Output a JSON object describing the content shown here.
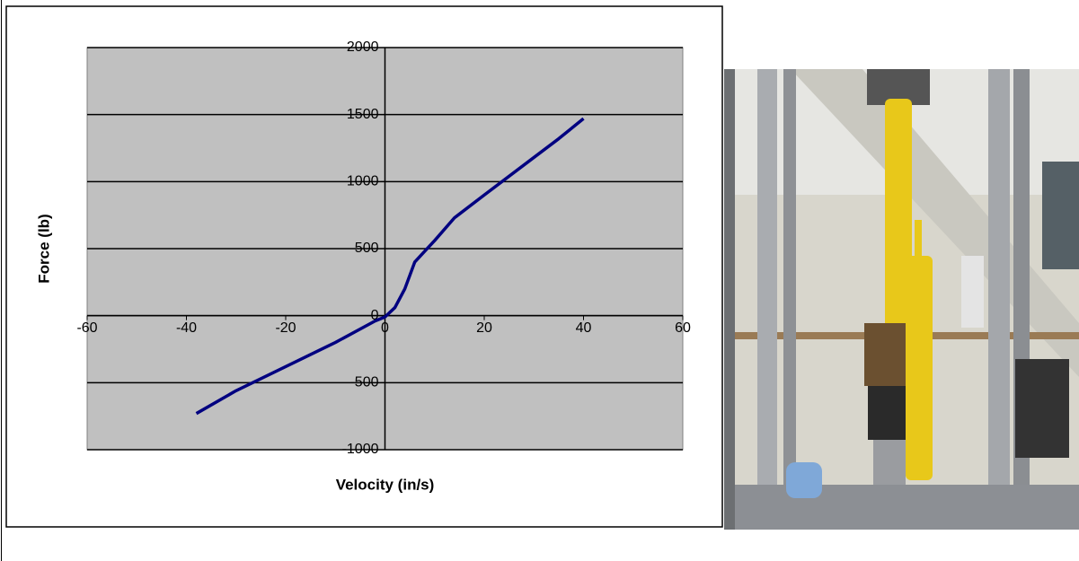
{
  "chart_data": {
    "type": "line",
    "x_label": "Velocity (in/s)",
    "y_label": "Force (lb)",
    "series": [
      {
        "name": "Force",
        "color": "#000080",
        "x": [
          -38,
          -30,
          -20,
          -10,
          -2,
          0,
          2,
          4,
          6,
          8,
          10,
          14,
          20,
          30,
          35,
          40
        ],
        "values": [
          -730,
          -560,
          -380,
          -200,
          -40,
          -10,
          60,
          200,
          400,
          480,
          560,
          730,
          900,
          1180,
          1320,
          1470
        ]
      }
    ],
    "xlim": [
      -60,
      60
    ],
    "xticks": [
      -60,
      -40,
      -20,
      0,
      20,
      40,
      60
    ],
    "ylim": [
      -1000,
      2000
    ],
    "yticks": [
      -1000,
      -500,
      0,
      500,
      1000,
      1500,
      2000
    ],
    "grid": true,
    "plot_background": "#c0c0c0"
  }
}
